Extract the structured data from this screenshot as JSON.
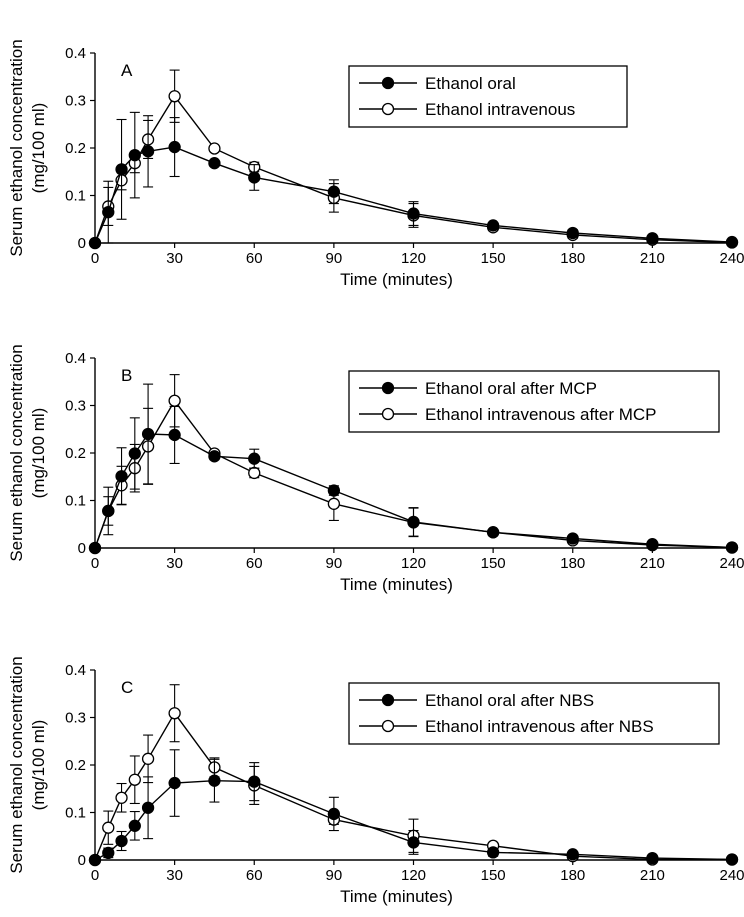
{
  "chart_data": [
    {
      "type": "line",
      "panel_label": "A",
      "xlabel": "Time (minutes)",
      "ylabel": "Serum ethanol concentration",
      "ylabel_units": "(mg/100 ml)",
      "xlim": [
        0,
        240
      ],
      "ylim": [
        0,
        0.4
      ],
      "xticks": [
        "0",
        "30",
        "60",
        "90",
        "120",
        "150",
        "180",
        "210",
        "240"
      ],
      "yticks": [
        "0",
        "0.1",
        "0.2",
        "0.3",
        "0.4"
      ],
      "grid": false,
      "legend_position": "top-right",
      "x": [
        0,
        5,
        10,
        15,
        20,
        30,
        45,
        60,
        90,
        120,
        150,
        180,
        210,
        240
      ],
      "series": [
        {
          "name": "Ethanol oral",
          "marker": "filled",
          "values": [
            0,
            0.065,
            0.155,
            0.185,
            0.193,
            0.202,
            0.168,
            0.138,
            0.108,
            0.062,
            0.037,
            0.021,
            0.01,
            0.002
          ],
          "errors": [
            0,
            0.065,
            0.105,
            0.09,
            0.075,
            0.062,
            0,
            0.027,
            0.025,
            0.025,
            0.005,
            0.007,
            0.005,
            0
          ]
        },
        {
          "name": "Ethanol intravenous",
          "marker": "open",
          "values": [
            0,
            0.077,
            0.132,
            0.168,
            0.218,
            0.309,
            0.199,
            0.16,
            0.095,
            0.058,
            0.033,
            0.017,
            0.007,
            0.001
          ],
          "errors": [
            0,
            0.04,
            0.02,
            0.02,
            0.04,
            0.055,
            0,
            0.01,
            0.03,
            0.025,
            0.005,
            0.007,
            0.005,
            0
          ]
        }
      ]
    },
    {
      "type": "line",
      "panel_label": "B",
      "xlabel": "Time (minutes)",
      "ylabel": "Serum ethanol concentration",
      "ylabel_units": "(mg/100 ml)",
      "xlim": [
        0,
        240
      ],
      "ylim": [
        0,
        0.4
      ],
      "xticks": [
        "0",
        "30",
        "60",
        "90",
        "120",
        "150",
        "180",
        "210",
        "240"
      ],
      "yticks": [
        "0",
        "0.1",
        "0.2",
        "0.3",
        "0.4"
      ],
      "grid": false,
      "legend_position": "top-right",
      "x": [
        0,
        5,
        10,
        15,
        20,
        30,
        45,
        60,
        90,
        120,
        150,
        180,
        210,
        240
      ],
      "series": [
        {
          "name": "Ethanol oral after MCP",
          "marker": "filled",
          "values": [
            0,
            0.078,
            0.151,
            0.199,
            0.24,
            0.238,
            0.193,
            0.188,
            0.121,
            0.055,
            0.033,
            0.02,
            0.008,
            0.001
          ],
          "errors": [
            0,
            0.05,
            0.06,
            0.075,
            0.105,
            0.06,
            0,
            0.02,
            0.01,
            0.03,
            0.005,
            0.006,
            0.005,
            0
          ]
        },
        {
          "name": "Ethanol intravenous after MCP",
          "marker": "open",
          "values": [
            0,
            0.078,
            0.132,
            0.168,
            0.214,
            0.31,
            0.199,
            0.158,
            0.093,
            0.054,
            0.033,
            0.016,
            0.006,
            0.001
          ],
          "errors": [
            0,
            0.03,
            0.04,
            0.05,
            0.08,
            0.055,
            0,
            0.01,
            0.035,
            0.03,
            0.005,
            0.006,
            0.005,
            0
          ]
        }
      ]
    },
    {
      "type": "line",
      "panel_label": "C",
      "xlabel": "Time (minutes)",
      "ylabel": "Serum ethanol concentration",
      "ylabel_units": "(mg/100 ml)",
      "xlim": [
        0,
        240
      ],
      "ylim": [
        0,
        0.4
      ],
      "xticks": [
        "0",
        "30",
        "60",
        "90",
        "120",
        "150",
        "180",
        "210",
        "240"
      ],
      "yticks": [
        "0",
        "0.1",
        "0.2",
        "0.3",
        "0.4"
      ],
      "grid": false,
      "legend_position": "top-right",
      "x": [
        0,
        5,
        10,
        15,
        20,
        30,
        45,
        60,
        90,
        120,
        150,
        180,
        210,
        240
      ],
      "series": [
        {
          "name": "Ethanol oral after NBS",
          "marker": "filled",
          "values": [
            0,
            0.015,
            0.04,
            0.072,
            0.11,
            0.162,
            0.167,
            0.165,
            0.097,
            0.037,
            0.016,
            0.012,
            0.004,
            0.001
          ],
          "errors": [
            0,
            0.01,
            0.02,
            0.03,
            0.065,
            0.07,
            0.045,
            0.04,
            0.035,
            0.025,
            0.008,
            0.006,
            0.003,
            0
          ]
        },
        {
          "name": "Ethanol intravenous after NBS",
          "marker": "open",
          "values": [
            0,
            0.068,
            0.131,
            0.169,
            0.213,
            0.309,
            0.195,
            0.157,
            0.085,
            0.051,
            0.03,
            0.008,
            0.001,
            0.001
          ],
          "errors": [
            0,
            0.035,
            0.03,
            0.05,
            0.05,
            0.06,
            0.02,
            0.04,
            0.01,
            0.035,
            0.006,
            0.005,
            0.003,
            0
          ]
        }
      ]
    }
  ]
}
